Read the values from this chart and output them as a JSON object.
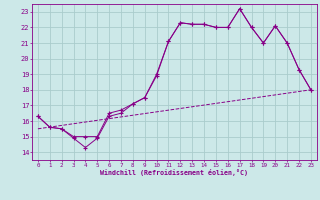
{
  "xlabel": "Windchill (Refroidissement éolien,°C)",
  "bg_color": "#cce8e8",
  "grid_color": "#aacccc",
  "line_color": "#880088",
  "x_ticks": [
    0,
    1,
    2,
    3,
    4,
    5,
    6,
    7,
    8,
    9,
    10,
    11,
    12,
    13,
    14,
    15,
    16,
    17,
    18,
    19,
    20,
    21,
    22,
    23
  ],
  "y_ticks": [
    14,
    15,
    16,
    17,
    18,
    19,
    20,
    21,
    22,
    23
  ],
  "xlim": [
    -0.5,
    23.5
  ],
  "ylim": [
    13.5,
    23.5
  ],
  "line1_x": [
    0,
    1,
    2,
    3,
    4,
    5,
    6,
    7,
    8,
    9,
    10,
    11,
    12,
    13,
    14,
    15,
    16,
    17,
    18,
    19,
    20,
    21,
    22,
    23
  ],
  "line1_y": [
    16.3,
    15.6,
    15.5,
    14.9,
    14.3,
    14.9,
    16.3,
    16.5,
    17.1,
    17.5,
    18.9,
    21.1,
    22.3,
    22.2,
    22.2,
    22.0,
    22.0,
    23.2,
    22.0,
    21.0,
    22.1,
    21.0,
    19.3,
    18.0
  ],
  "line2_x": [
    0,
    1,
    2,
    3,
    4,
    5,
    6,
    7,
    8,
    9,
    10,
    11,
    12,
    13,
    14,
    15,
    16,
    17,
    18,
    19,
    20,
    21,
    22,
    23
  ],
  "line2_y": [
    16.3,
    15.6,
    15.5,
    15.0,
    15.0,
    15.0,
    16.5,
    16.7,
    17.1,
    17.5,
    19.0,
    21.1,
    22.3,
    22.2,
    22.2,
    22.0,
    22.0,
    23.2,
    22.0,
    21.0,
    22.1,
    21.0,
    19.3,
    18.0
  ],
  "line3_x": [
    0,
    23
  ],
  "line3_y": [
    15.5,
    18.0
  ]
}
